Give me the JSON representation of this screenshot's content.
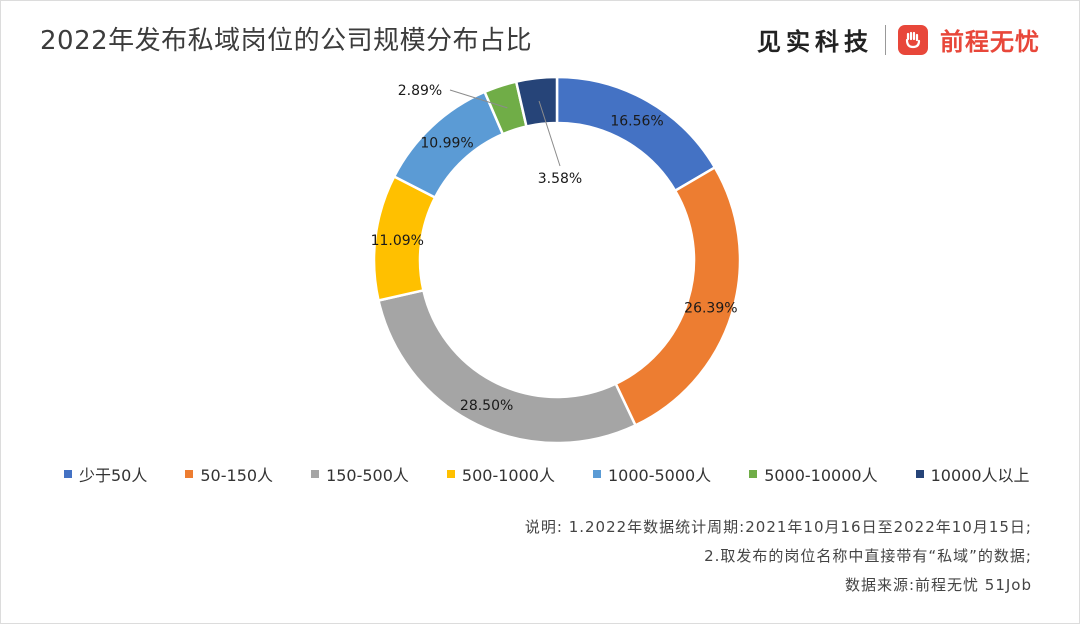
{
  "header": {
    "title": "2022年发布私域岗位的公司规模分布占比",
    "brand_left": "见实科技",
    "brand_right": "前程无忧"
  },
  "chart_data": {
    "type": "pie",
    "donut": true,
    "title": "2022年发布私域岗位的公司规模分布占比",
    "legend_position": "bottom",
    "categories": [
      "少于50人",
      "50-150人",
      "150-500人",
      "500-1000人",
      "1000-5000人",
      "5000-10000人",
      "10000人以上"
    ],
    "values": [
      16.56,
      26.39,
      28.5,
      11.09,
      10.99,
      2.89,
      3.58
    ],
    "labels": [
      "16.56%",
      "26.39%",
      "28.50%",
      "11.09%",
      "10.99%",
      "2.89%",
      "3.58%"
    ],
    "colors": [
      "#4472c4",
      "#ed7d31",
      "#a5a5a5",
      "#ffc000",
      "#5b9bd5",
      "#70ad47",
      "#264478"
    ]
  },
  "notes": {
    "line1": "说明: 1.2022年数据统计周期:2021年10月16日至2022年10月15日;",
    "line2": "2.取发布的岗位名称中直接带有“私域”的数据;",
    "source": "数据来源:前程无忧 51Job"
  }
}
